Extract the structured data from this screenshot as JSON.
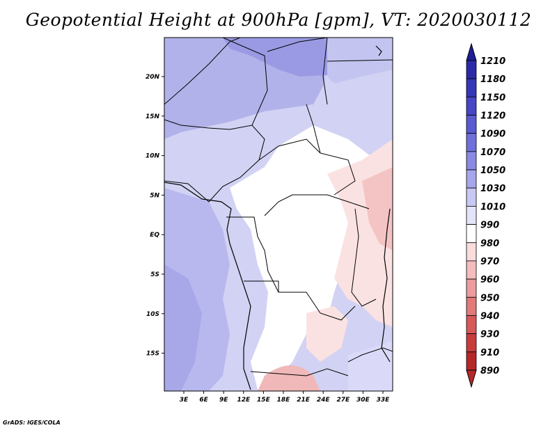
{
  "title": "Geopotential Height at 900hPa [gpm], VT: 2020030112",
  "credit": "GrADS: IGES/COLA",
  "map": {
    "lat_labels": [
      "20N",
      "15N",
      "10N",
      "5N",
      "EQ",
      "5S",
      "10S",
      "15S"
    ],
    "lon_labels": [
      "3E",
      "6E",
      "9E",
      "12E",
      "15E",
      "18E",
      "21E",
      "24E",
      "27E",
      "30E",
      "33E"
    ]
  },
  "legend": {
    "labels": [
      "1210",
      "1180",
      "1150",
      "1120",
      "1090",
      "1070",
      "1050",
      "1030",
      "1010",
      "990",
      "980",
      "970",
      "960",
      "950",
      "940",
      "930",
      "910",
      "890"
    ],
    "colors": [
      "#1e1e96",
      "#2a2aa8",
      "#3636b8",
      "#4646c6",
      "#5a5ad2",
      "#7070dc",
      "#8a8ae4",
      "#a6a6ec",
      "#c8c8f4",
      "#e4e4fa",
      "#ffffff",
      "#fadcdc",
      "#f4bcbc",
      "#ec9c9c",
      "#e27a7a",
      "#d85858",
      "#c83c3c",
      "#b42828"
    ]
  },
  "colors": {
    "high": "#b4b4ec",
    "mid": "#d6d6f6",
    "neutral": "#ffffff",
    "low": "#fadede",
    "lower": "#f2c0c0"
  }
}
